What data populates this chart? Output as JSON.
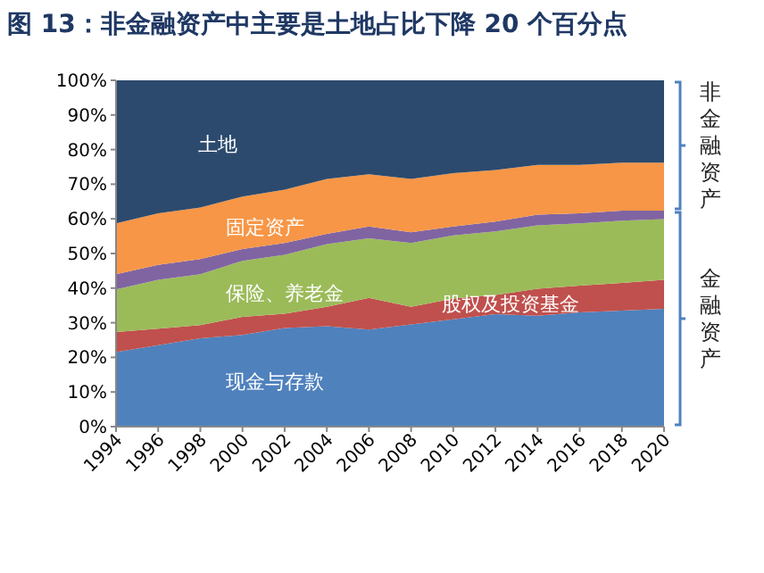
{
  "chart_data": {
    "type": "area",
    "stacked": true,
    "title": "图 13：非金融资产中主要是土地占比下降 20 个百分点",
    "x": [
      1994,
      1996,
      1998,
      2000,
      2002,
      2004,
      2006,
      2008,
      2010,
      2012,
      2014,
      2016,
      2018,
      2020
    ],
    "xlim": [
      1994,
      2020
    ],
    "xticks": [
      1994,
      1996,
      1998,
      2000,
      2002,
      2004,
      2006,
      2008,
      2010,
      2012,
      2014,
      2016,
      2018,
      2020
    ],
    "ylim": [
      0,
      100
    ],
    "yticks": [
      {
        "value": 0,
        "label": "0%"
      },
      {
        "value": 10,
        "label": "10%"
      },
      {
        "value": 20,
        "label": "20%"
      },
      {
        "value": 30,
        "label": "30%"
      },
      {
        "value": 40,
        "label": "40%"
      },
      {
        "value": 50,
        "label": "50%"
      },
      {
        "value": 60,
        "label": "60%"
      },
      {
        "value": 70,
        "label": "70%"
      },
      {
        "value": 80,
        "label": "80%"
      },
      {
        "value": 90,
        "label": "90%"
      },
      {
        "value": 100,
        "label": "100%"
      }
    ],
    "series": [
      {
        "name": "现金与存款",
        "color": "#4f81bd",
        "values": [
          21.5,
          23.5,
          25.5,
          26.5,
          28.5,
          29,
          28,
          29.5,
          31,
          32.5,
          32,
          33,
          33.5,
          34
        ]
      },
      {
        "name": "股权及投资基金",
        "color": "#c0504d",
        "values": [
          5.8,
          4.8,
          3.8,
          5.2,
          4.1,
          5.6,
          9.2,
          5.1,
          6,
          5.5,
          7.8,
          7.7,
          8,
          8.4
        ]
      },
      {
        "name": "保险、养老金",
        "color": "#9bbb59",
        "values": [
          12.3,
          14.1,
          14.7,
          16.2,
          17,
          18.1,
          17.2,
          18.4,
          18.2,
          18.4,
          18.3,
          18,
          18,
          17.5
        ]
      },
      {
        "color": "#8064a2",
        "values": [
          4.4,
          4.3,
          4.4,
          3.4,
          3.4,
          3,
          3.4,
          3.1,
          2.6,
          2.8,
          3.1,
          2.9,
          2.9,
          2.5
        ]
      },
      {
        "name": "固定资产",
        "color": "#f79646",
        "values": [
          14.7,
          14.9,
          14.9,
          15.1,
          15.4,
          15.8,
          15.1,
          15.4,
          15.4,
          14.9,
          14.4,
          14,
          13.8,
          13.8
        ]
      },
      {
        "name": "土地",
        "color": "#2c4a6e",
        "values": [
          41.3,
          38.4,
          36.7,
          33.6,
          31.6,
          28.5,
          27.1,
          28.5,
          26.8,
          25.9,
          24.4,
          24.4,
          23.8,
          23.8
        ]
      }
    ],
    "annotations": [
      "非金融资产",
      "金融资产"
    ]
  }
}
